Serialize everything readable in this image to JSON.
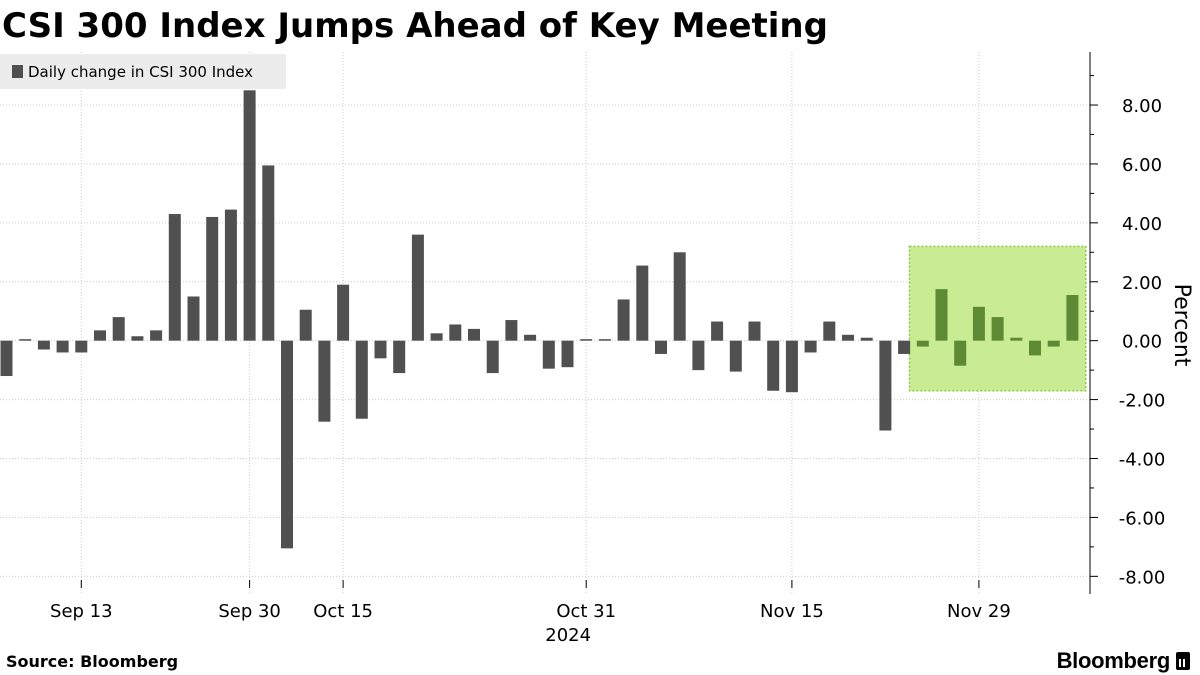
{
  "title": "CSI 300 Index Jumps Ahead of Key Meeting",
  "source": "Source: Bloomberg",
  "brand": "Bloomberg",
  "colors": {
    "bar": "#505050",
    "highlight_bar": "#5e8a35",
    "highlight_fill": "#c8eb93",
    "highlight_border": "#86c840",
    "grid": "#cccccc",
    "legend_bg": "#ececec"
  },
  "chart_data": {
    "type": "bar",
    "legend": "Daily change in CSI 300 Index",
    "ylabel": "Percent",
    "ylim": [
      -8.6,
      9.8
    ],
    "yticks": [
      -8,
      -6,
      -4,
      -2,
      0,
      2,
      4,
      6,
      8
    ],
    "ytick_labels": [
      "-8.00",
      "-6.00",
      "-4.00",
      "-2.00",
      "0.00",
      "2.00",
      "4.00",
      "6.00",
      "8.00"
    ],
    "xtick_labels": [
      "Sep 13",
      "Sep 30",
      "Oct 15",
      "Oct 31",
      "Nov 15",
      "Nov 29"
    ],
    "xtick_bar_index": [
      4,
      13,
      18,
      31,
      42,
      52
    ],
    "year_label": "2024",
    "year_label_bar_index": 31,
    "highlight": {
      "start_index": 49,
      "end_index": 57,
      "y_range": [
        -1.7,
        3.2
      ]
    },
    "values": [
      -1.2,
      0.05,
      -0.3,
      -0.4,
      -0.4,
      0.35,
      0.8,
      0.15,
      0.35,
      4.3,
      1.5,
      4.2,
      4.45,
      8.5,
      5.95,
      -7.05,
      1.05,
      -2.75,
      1.9,
      -2.65,
      -0.6,
      -1.1,
      3.6,
      0.25,
      0.55,
      0.4,
      -1.1,
      0.7,
      0.2,
      -0.95,
      -0.9,
      0.05,
      0.05,
      1.4,
      2.55,
      -0.45,
      3.0,
      -1.0,
      0.65,
      -1.05,
      0.65,
      -1.7,
      -1.75,
      -0.4,
      0.65,
      0.2,
      0.1,
      -3.05,
      -0.45,
      -0.2,
      1.75,
      -0.85,
      1.15,
      0.8,
      0.1,
      -0.5,
      -0.2,
      1.55
    ]
  }
}
